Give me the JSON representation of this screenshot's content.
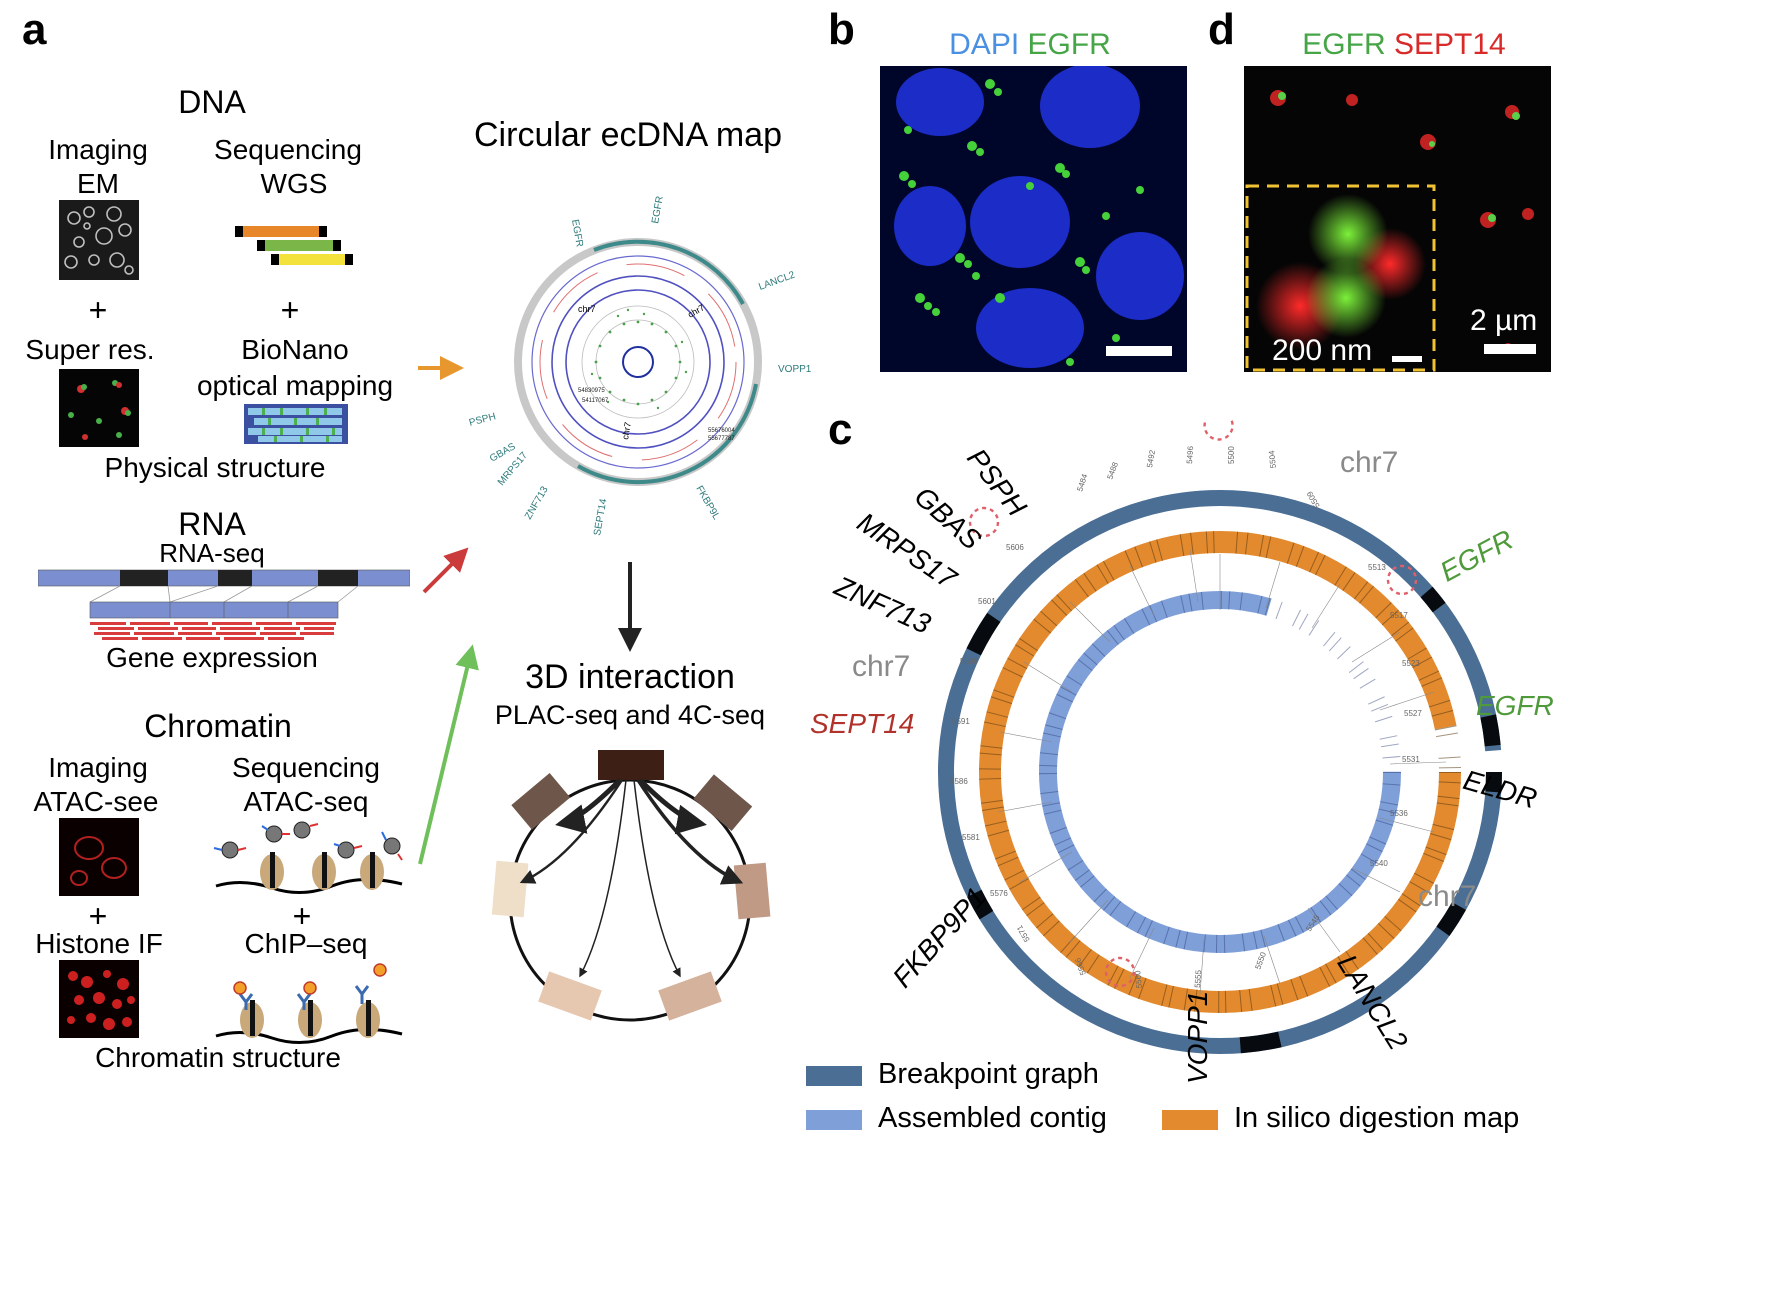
{
  "panels": {
    "a": "a",
    "b": "b",
    "c": "c",
    "d": "d"
  },
  "dna": {
    "title": "DNA",
    "imaging": "Imaging",
    "em": "EM",
    "sequencing": "Sequencing",
    "wgs": "WGS",
    "plus": "+",
    "super_res": "Super res.",
    "bionano_1": "BioNano",
    "bionano_2": "optical mapping",
    "footer": "Physical structure"
  },
  "rna": {
    "title": "RNA",
    "subtitle": "RNA-seq",
    "footer": "Gene expression"
  },
  "chromatin": {
    "title": "Chromatin",
    "imaging": "Imaging",
    "atac_see": "ATAC-see",
    "sequencing": "Sequencing",
    "atac_seq": "ATAC-seq",
    "plus": "+",
    "histone": "Histone IF",
    "chip": "ChIP–seq",
    "footer": "Chromatin structure"
  },
  "ecdna_map": {
    "title": "Circular ecDNA map",
    "gene_labels": [
      "EGFR",
      "EGFR",
      "LANCL2",
      "VOPP1",
      "FKBP9L",
      "SEPT14",
      "ZNF713",
      "MRPS17",
      "GBAS",
      "PSPH"
    ],
    "chr_labels": [
      "chr7",
      "chr7",
      "chr7"
    ],
    "positions": [
      "54830975",
      "54117067",
      "55676004",
      "55677787"
    ]
  },
  "interaction": {
    "title": "3D interaction",
    "subtitle": "PLAC-seq and 4C-seq"
  },
  "panel_b": {
    "label_dapi": "DAPI",
    "label_egfr": "EGFR"
  },
  "panel_d": {
    "label_egfr": "EGFR",
    "label_sept14": "SEPT14",
    "scale_big": "2 µm",
    "scale_small": "200 nm"
  },
  "panel_c": {
    "genes": [
      {
        "name": "PSPH",
        "color": "#000000"
      },
      {
        "name": "GBAS",
        "color": "#000000"
      },
      {
        "name": "MRPS17",
        "color": "#000000"
      },
      {
        "name": "ZNF713",
        "color": "#000000"
      },
      {
        "name": "chr7",
        "color": "#8a8a8a"
      },
      {
        "name": "SEPT14",
        "color": "#b0322a"
      },
      {
        "name": "FKBP9P1",
        "color": "#000000"
      },
      {
        "name": "VOPP1",
        "color": "#000000"
      },
      {
        "name": "LANCL2",
        "color": "#000000"
      },
      {
        "name": "chr7",
        "color": "#8a8a8a"
      },
      {
        "name": "ELDR",
        "color": "#000000"
      },
      {
        "name": "EGFR",
        "color": "#4f9a3a"
      },
      {
        "name": "EGFR",
        "color": "#4f9a3a"
      },
      {
        "name": "chr7",
        "color": "#8a8a8a"
      }
    ],
    "legend": {
      "breakpoint": "Breakpoint graph",
      "contig": "Assembled contig",
      "digestion": "In silico digestion map"
    },
    "colors": {
      "breakpoint": "#4a6e94",
      "contig": "#7f9fd8",
      "digestion": "#e38a2e"
    }
  },
  "colors": {
    "dapi": "#4a90e2",
    "egfr": "#46a546",
    "sept14": "#d92a2a",
    "arrow_orange": "#e8962e",
    "arrow_red": "#cc3b3b",
    "arrow_green": "#6fbf5a"
  }
}
